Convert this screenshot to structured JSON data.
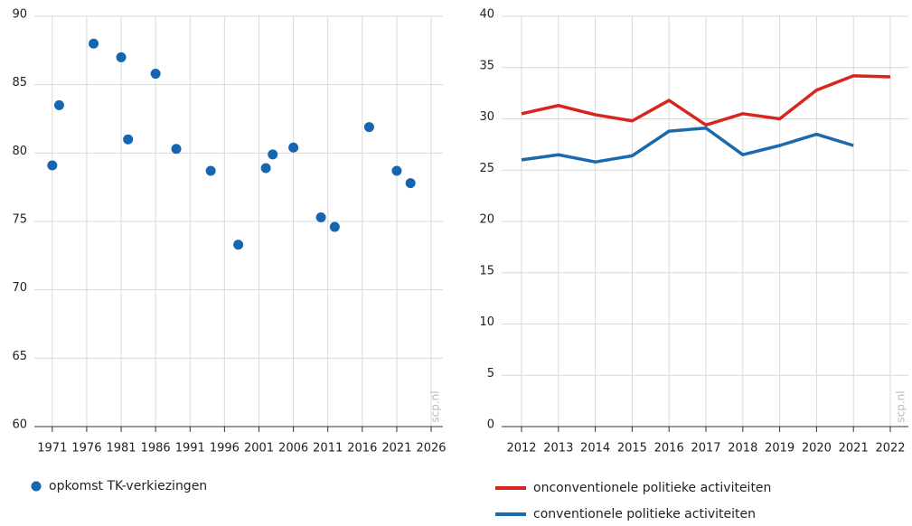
{
  "chart_data": [
    {
      "type": "scatter",
      "x": [
        1971,
        1972,
        1977,
        1981,
        1982,
        1986,
        1989,
        1994,
        1998,
        2002,
        2003,
        2006,
        2010,
        2012,
        2017,
        2021,
        2023
      ],
      "series": [
        {
          "name": "opkomst TK-verkiezingen",
          "color": "#1565b0",
          "values": [
            79.1,
            83.5,
            88.0,
            87.0,
            81.0,
            85.8,
            80.3,
            78.7,
            73.3,
            78.9,
            79.9,
            80.4,
            75.3,
            74.6,
            81.9,
            78.7,
            77.8
          ]
        }
      ],
      "xlim": [
        1968.4,
        2027.7
      ],
      "xticks": [
        1971,
        1976,
        1981,
        1986,
        1991,
        1996,
        2001,
        2006,
        2011,
        2016,
        2021,
        2026
      ],
      "ylim": [
        60,
        90
      ],
      "yticks": [
        60,
        65,
        70,
        75,
        80,
        85,
        90
      ],
      "grid": true,
      "watermark": "scp.nl"
    },
    {
      "type": "line",
      "categories": [
        "2012",
        "2013",
        "2014",
        "2015",
        "2016",
        "2017",
        "2018",
        "2019",
        "2020",
        "2021",
        "2022"
      ],
      "series": [
        {
          "name": "onconventionele politieke activiteiten",
          "color": "#d7261e",
          "values": [
            30.5,
            31.3,
            30.4,
            29.8,
            31.8,
            29.4,
            30.5,
            30.0,
            32.8,
            34.2,
            34.1
          ]
        },
        {
          "name": "conventionele politieke activiteiten",
          "color": "#1a6aad",
          "values": [
            26.0,
            26.5,
            25.8,
            26.4,
            28.8,
            29.1,
            26.5,
            27.4,
            28.5,
            27.4,
            null
          ]
        }
      ],
      "ylim": [
        0,
        40
      ],
      "yticks": [
        0,
        5,
        10,
        15,
        20,
        25,
        30,
        35,
        40
      ],
      "grid": true,
      "watermark": "scp.nl"
    }
  ]
}
